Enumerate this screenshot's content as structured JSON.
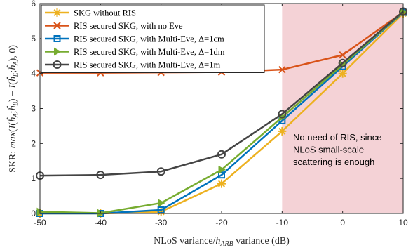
{
  "chart_data": {
    "type": "line",
    "xlabel": "NLoS variance/h_ARB variance (dB)",
    "ylabel": "SKR: max(I(ĥ_A;ĥ_B) − I(ĥ_E;ĥ_A),0)",
    "x": [
      -50,
      -40,
      -30,
      -20,
      -10,
      0,
      10
    ],
    "xlim": [
      -50,
      10
    ],
    "ylim": [
      0,
      6
    ],
    "xticks": [
      "-50",
      "-40",
      "-30",
      "-20",
      "-10",
      "0",
      "10"
    ],
    "yticks": [
      "0",
      "1",
      "2",
      "3",
      "4",
      "5",
      "6"
    ],
    "grid": false,
    "legend_position": "top-left",
    "shaded_region": {
      "x_range": [
        -10,
        10
      ],
      "color": "#f4d2d6"
    },
    "annotation": [
      "No need of RIS, since",
      "NLoS small-scale",
      "scattering is enough"
    ],
    "series": [
      {
        "name": "SKG without RIS",
        "color": "#EDB120",
        "marker": "asterisk",
        "values": [
          0.0,
          0.0,
          0.05,
          0.85,
          2.35,
          4.0,
          5.72
        ]
      },
      {
        "name": "RIS secured SKG, with no Eve",
        "color": "#D95319",
        "marker": "x",
        "values": [
          4.02,
          4.02,
          4.03,
          4.04,
          4.11,
          4.53,
          5.75
        ]
      },
      {
        "name": "RIS secured SKG, with Multi-Eve, Δ=1cm",
        "color": "#0072BD",
        "marker": "square",
        "values": [
          0.0,
          0.0,
          0.1,
          1.1,
          2.65,
          4.2,
          5.75
        ]
      },
      {
        "name": "RIS secured SKG, with Multi-Eve, Δ=1dm",
        "color": "#77AC30",
        "marker": "triangle-right",
        "values": [
          0.05,
          0.01,
          0.3,
          1.25,
          2.75,
          4.25,
          5.76
        ]
      },
      {
        "name": "RIS secured SKG, with Multi-Eve, Δ=1m",
        "color": "#444444",
        "marker": "circle",
        "values": [
          1.08,
          1.1,
          1.2,
          1.69,
          2.84,
          4.3,
          5.77
        ]
      }
    ]
  }
}
